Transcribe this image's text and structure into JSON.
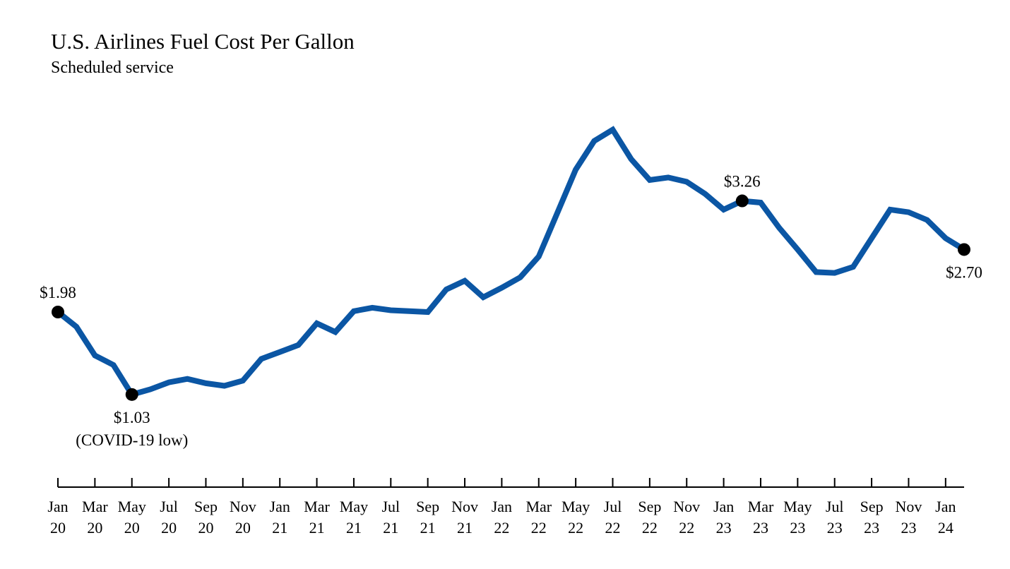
{
  "chart_data": {
    "type": "line",
    "title": "U.S. Airlines Fuel Cost Per Gallon",
    "subtitle": "Scheduled service",
    "xlabel": "",
    "ylabel": "",
    "ylim": [
      0.9,
      4.3
    ],
    "grid": false,
    "line_color": "#0b56a4",
    "marker_color": "#000000",
    "x": [
      "Jan 20",
      "Feb 20",
      "Mar 20",
      "Apr 20",
      "May 20",
      "Jun 20",
      "Jul 20",
      "Aug 20",
      "Sep 20",
      "Oct 20",
      "Nov 20",
      "Dec 20",
      "Jan 21",
      "Feb 21",
      "Mar 21",
      "Apr 21",
      "May 21",
      "Jun 21",
      "Jul 21",
      "Aug 21",
      "Sep 21",
      "Oct 21",
      "Nov 21",
      "Dec 21",
      "Jan 22",
      "Feb 22",
      "Mar 22",
      "Apr 22",
      "May 22",
      "Jun 22",
      "Jul 22",
      "Aug 22",
      "Sep 22",
      "Oct 22",
      "Nov 22",
      "Dec 22",
      "Jan 23",
      "Feb 23",
      "Mar 23",
      "Apr 23",
      "May 23",
      "Jun 23",
      "Jul 23",
      "Aug 23",
      "Sep 23",
      "Oct 23",
      "Nov 23",
      "Dec 23",
      "Jan 24",
      "Feb 24"
    ],
    "values": [
      1.98,
      1.81,
      1.48,
      1.37,
      1.03,
      1.09,
      1.17,
      1.21,
      1.16,
      1.13,
      1.19,
      1.44,
      1.52,
      1.6,
      1.85,
      1.75,
      1.99,
      2.03,
      2.0,
      1.99,
      1.98,
      2.24,
      2.34,
      2.15,
      2.26,
      2.38,
      2.62,
      3.12,
      3.62,
      3.95,
      4.08,
      3.74,
      3.5,
      3.53,
      3.48,
      3.34,
      3.16,
      3.26,
      3.24,
      2.95,
      2.7,
      2.44,
      2.43,
      2.5,
      2.83,
      3.16,
      3.13,
      3.04,
      2.83,
      2.7
    ],
    "tick_labels": [
      [
        "Jan",
        "20"
      ],
      [
        "Mar",
        "20"
      ],
      [
        "May",
        "20"
      ],
      [
        "Jul",
        "20"
      ],
      [
        "Sep",
        "20"
      ],
      [
        "Nov",
        "20"
      ],
      [
        "Jan",
        "21"
      ],
      [
        "Mar",
        "21"
      ],
      [
        "May",
        "21"
      ],
      [
        "Jul",
        "21"
      ],
      [
        "Sep",
        "21"
      ],
      [
        "Nov",
        "21"
      ],
      [
        "Jan",
        "22"
      ],
      [
        "Mar",
        "22"
      ],
      [
        "May",
        "22"
      ],
      [
        "Jul",
        "22"
      ],
      [
        "Sep",
        "22"
      ],
      [
        "Nov",
        "22"
      ],
      [
        "Jan",
        "23"
      ],
      [
        "Mar",
        "23"
      ],
      [
        "May",
        "23"
      ],
      [
        "Jul",
        "23"
      ],
      [
        "Sep",
        "23"
      ],
      [
        "Nov",
        "23"
      ],
      [
        "Jan",
        "24"
      ]
    ],
    "annotations": [
      {
        "index": 0,
        "label": "$1.98",
        "position": "above"
      },
      {
        "index": 4,
        "label": "$1.03",
        "note": "(COVID-19 low)",
        "position": "below"
      },
      {
        "index": 37,
        "label": "$3.26",
        "position": "above"
      },
      {
        "index": 49,
        "label": "$2.70",
        "position": "below"
      }
    ]
  }
}
